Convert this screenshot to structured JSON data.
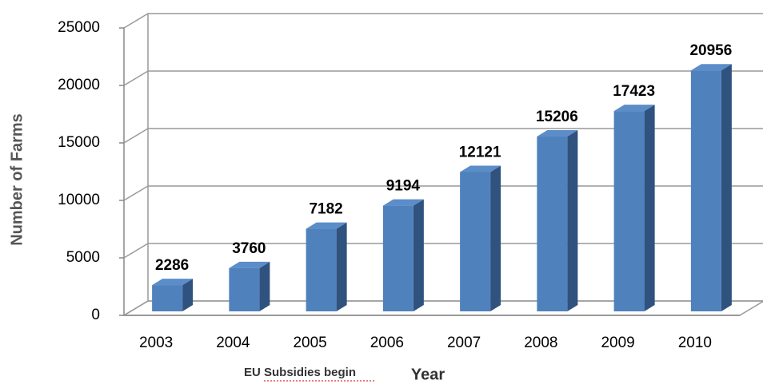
{
  "chart_data": {
    "type": "bar3d",
    "y_label": "Number of Farms",
    "x_label": "Year",
    "annotation": "EU Subsidies begin",
    "categories": [
      "2003",
      "2004",
      "2005",
      "2006",
      "2007",
      "2008",
      "2009",
      "2010"
    ],
    "values": [
      2286,
      3760,
      7182,
      9194,
      12121,
      15206,
      17423,
      20956
    ],
    "color": "#4f81bd",
    "ylim": [
      0,
      25000
    ],
    "yticks": [
      0,
      5000,
      10000,
      15000,
      20000,
      25000
    ],
    "grid": true
  }
}
